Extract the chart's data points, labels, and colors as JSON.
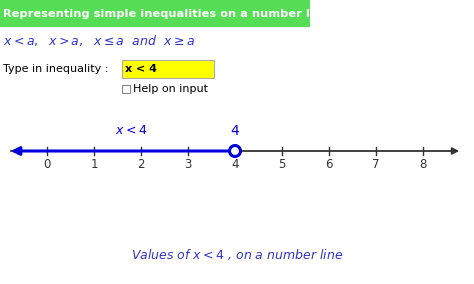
{
  "title": "Representing simple inequalities on a number line",
  "title_bg": "#55dd55",
  "title_color": "white",
  "subtitle_color": "#3333cc",
  "input_label": "Type in inequality :",
  "input_value": "x < 4",
  "input_bg": "yellow",
  "checkbox_label": "Help on input",
  "tick_positions": [
    0,
    1,
    2,
    3,
    4,
    5,
    6,
    7,
    8
  ],
  "inequality_value": 4,
  "arrow_color": "#0000dd",
  "axis_color": "#333333",
  "number_color": "#333333",
  "caption_color": "#3333cc",
  "fig_bg": "white",
  "figsize": [
    4.74,
    2.84
  ],
  "dpi": 100
}
